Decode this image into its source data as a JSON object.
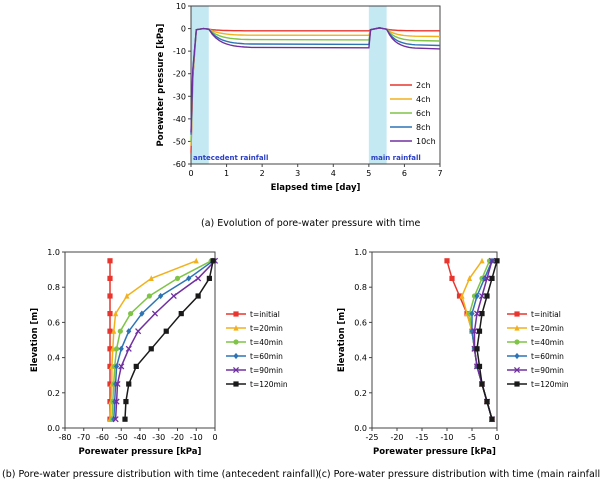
{
  "captions": {
    "a": "(a) Evolution of pore-water pressure with time",
    "b": "(b) Pore-water pressure distribution with time (antecedent rainfall)",
    "c": "(c) Pore-water pressure distribution with time (main rainfall)"
  },
  "chart_data": [
    {
      "type": "line",
      "xlabel": "Elapsed time [day]",
      "ylabel": "Porewater pressure [kPa]",
      "xlim": [
        0,
        7
      ],
      "ylim": [
        -60,
        10
      ],
      "xticks": [
        "0",
        "1",
        "2",
        "3",
        "4",
        "5",
        "6",
        "7"
      ],
      "yticks": [
        "-60",
        "-50",
        "-40",
        "-30",
        "-20",
        "-10",
        "0",
        "10"
      ],
      "grid": false,
      "legend_position": "right",
      "annotations": [
        {
          "text": "antecedent rainfall",
          "x_range": [
            0,
            0.5
          ],
          "color": "#2b3fc4"
        },
        {
          "text": "main rainfall",
          "x_range": [
            5,
            5.5
          ],
          "color": "#2b3fc4"
        }
      ],
      "series": [
        {
          "name": "2ch",
          "color": "#e8362e",
          "initial": -55,
          "after_first": -1,
          "after_second": -1
        },
        {
          "name": "4ch",
          "color": "#f2b11c",
          "initial": -52,
          "after_first": -3,
          "after_second": -3.5
        },
        {
          "name": "6ch",
          "color": "#7fc447",
          "initial": -50,
          "after_first": -5,
          "after_second": -5.5
        },
        {
          "name": "8ch",
          "color": "#2d74b5",
          "initial": -47,
          "after_first": -7,
          "after_second": -7.5
        },
        {
          "name": "10ch",
          "color": "#7030a0",
          "initial": -46,
          "after_first": -8.5,
          "after_second": -9
        }
      ]
    },
    {
      "type": "line",
      "xlabel": "Porewater pressure [kPa]",
      "ylabel": "Elevation [m]",
      "xlim": [
        -80,
        0
      ],
      "ylim": [
        0,
        1
      ],
      "xticks": [
        "-80",
        "-70",
        "-60",
        "-50",
        "-40",
        "-30",
        "-20",
        "-10",
        "0"
      ],
      "yticks": [
        "0.0",
        "0.2",
        "0.4",
        "0.6",
        "0.8",
        "1.0"
      ],
      "grid": false,
      "legend_position": "right",
      "elevations": [
        0.05,
        0.15,
        0.25,
        0.35,
        0.45,
        0.55,
        0.65,
        0.75,
        0.85,
        0.95
      ],
      "series": [
        {
          "name": "t=initial",
          "color": "#e8362e",
          "marker": "square",
          "values": [
            -56,
            -56,
            -56,
            -56,
            -56,
            -56,
            -56,
            -56,
            -56,
            -56
          ]
        },
        {
          "name": "t=20min",
          "color": "#f2b11c",
          "marker": "triangle",
          "values": [
            -56,
            -55.5,
            -55,
            -55,
            -54.5,
            -54,
            -53,
            -47,
            -34,
            -10
          ]
        },
        {
          "name": "t=40min",
          "color": "#7fc447",
          "marker": "circle",
          "values": [
            -55,
            -54.5,
            -54,
            -53.5,
            -52.5,
            -50.5,
            -45,
            -35,
            -20,
            -2
          ]
        },
        {
          "name": "t=60min",
          "color": "#2d74b5",
          "marker": "diamond",
          "values": [
            -54,
            -53.5,
            -53,
            -52.5,
            -50,
            -46,
            -39,
            -29,
            -14,
            -1
          ]
        },
        {
          "name": "t=90min",
          "color": "#7030a0",
          "marker": "x",
          "values": [
            -53,
            -52.5,
            -52,
            -50,
            -46,
            -41,
            -32,
            -22,
            -9,
            0
          ]
        },
        {
          "name": "t=120min",
          "color": "#1a1a1a",
          "marker": "square",
          "values": [
            -48,
            -47.5,
            -46,
            -42,
            -34,
            -26,
            -18,
            -9,
            -3,
            -1
          ]
        }
      ]
    },
    {
      "type": "line",
      "xlabel": "Porewater pressure [kPa]",
      "ylabel": "Elevation [m]",
      "xlim": [
        -25,
        0
      ],
      "ylim": [
        0,
        1
      ],
      "xticks": [
        "-25",
        "-20",
        "-15",
        "-10",
        "-5",
        "0"
      ],
      "yticks": [
        "0.0",
        "0.2",
        "0.4",
        "0.6",
        "0.8",
        "1.0"
      ],
      "grid": false,
      "legend_position": "right",
      "elevations": [
        0.05,
        0.15,
        0.25,
        0.35,
        0.45,
        0.55,
        0.65,
        0.75,
        0.85,
        0.95
      ],
      "series": [
        {
          "name": "t=initial",
          "color": "#e8362e",
          "marker": "square",
          "values": [
            -1,
            -2,
            -3,
            -4,
            -4.5,
            -5,
            -6,
            -7.5,
            -9,
            -10
          ]
        },
        {
          "name": "t=20min",
          "color": "#f2b11c",
          "marker": "triangle",
          "values": [
            -1,
            -2,
            -3,
            -4,
            -4.5,
            -5,
            -6,
            -7,
            -5.5,
            -3
          ]
        },
        {
          "name": "t=40min",
          "color": "#7fc447",
          "marker": "circle",
          "values": [
            -1,
            -2,
            -3,
            -4,
            -4.5,
            -5,
            -5.5,
            -4.5,
            -3,
            -1.5
          ]
        },
        {
          "name": "t=60min",
          "color": "#2d74b5",
          "marker": "diamond",
          "values": [
            -1,
            -2,
            -3,
            -4,
            -4.5,
            -5,
            -5,
            -4,
            -2.5,
            -1
          ]
        },
        {
          "name": "t=90min",
          "color": "#7030a0",
          "marker": "x",
          "values": [
            -1,
            -2,
            -3,
            -4,
            -4.5,
            -4.5,
            -4,
            -3,
            -2,
            -1
          ]
        },
        {
          "name": "t=120min",
          "color": "#1a1a1a",
          "marker": "square",
          "values": [
            -1,
            -2,
            -3,
            -3.5,
            -4,
            -3.5,
            -3,
            -2,
            -1,
            0
          ]
        }
      ]
    }
  ]
}
